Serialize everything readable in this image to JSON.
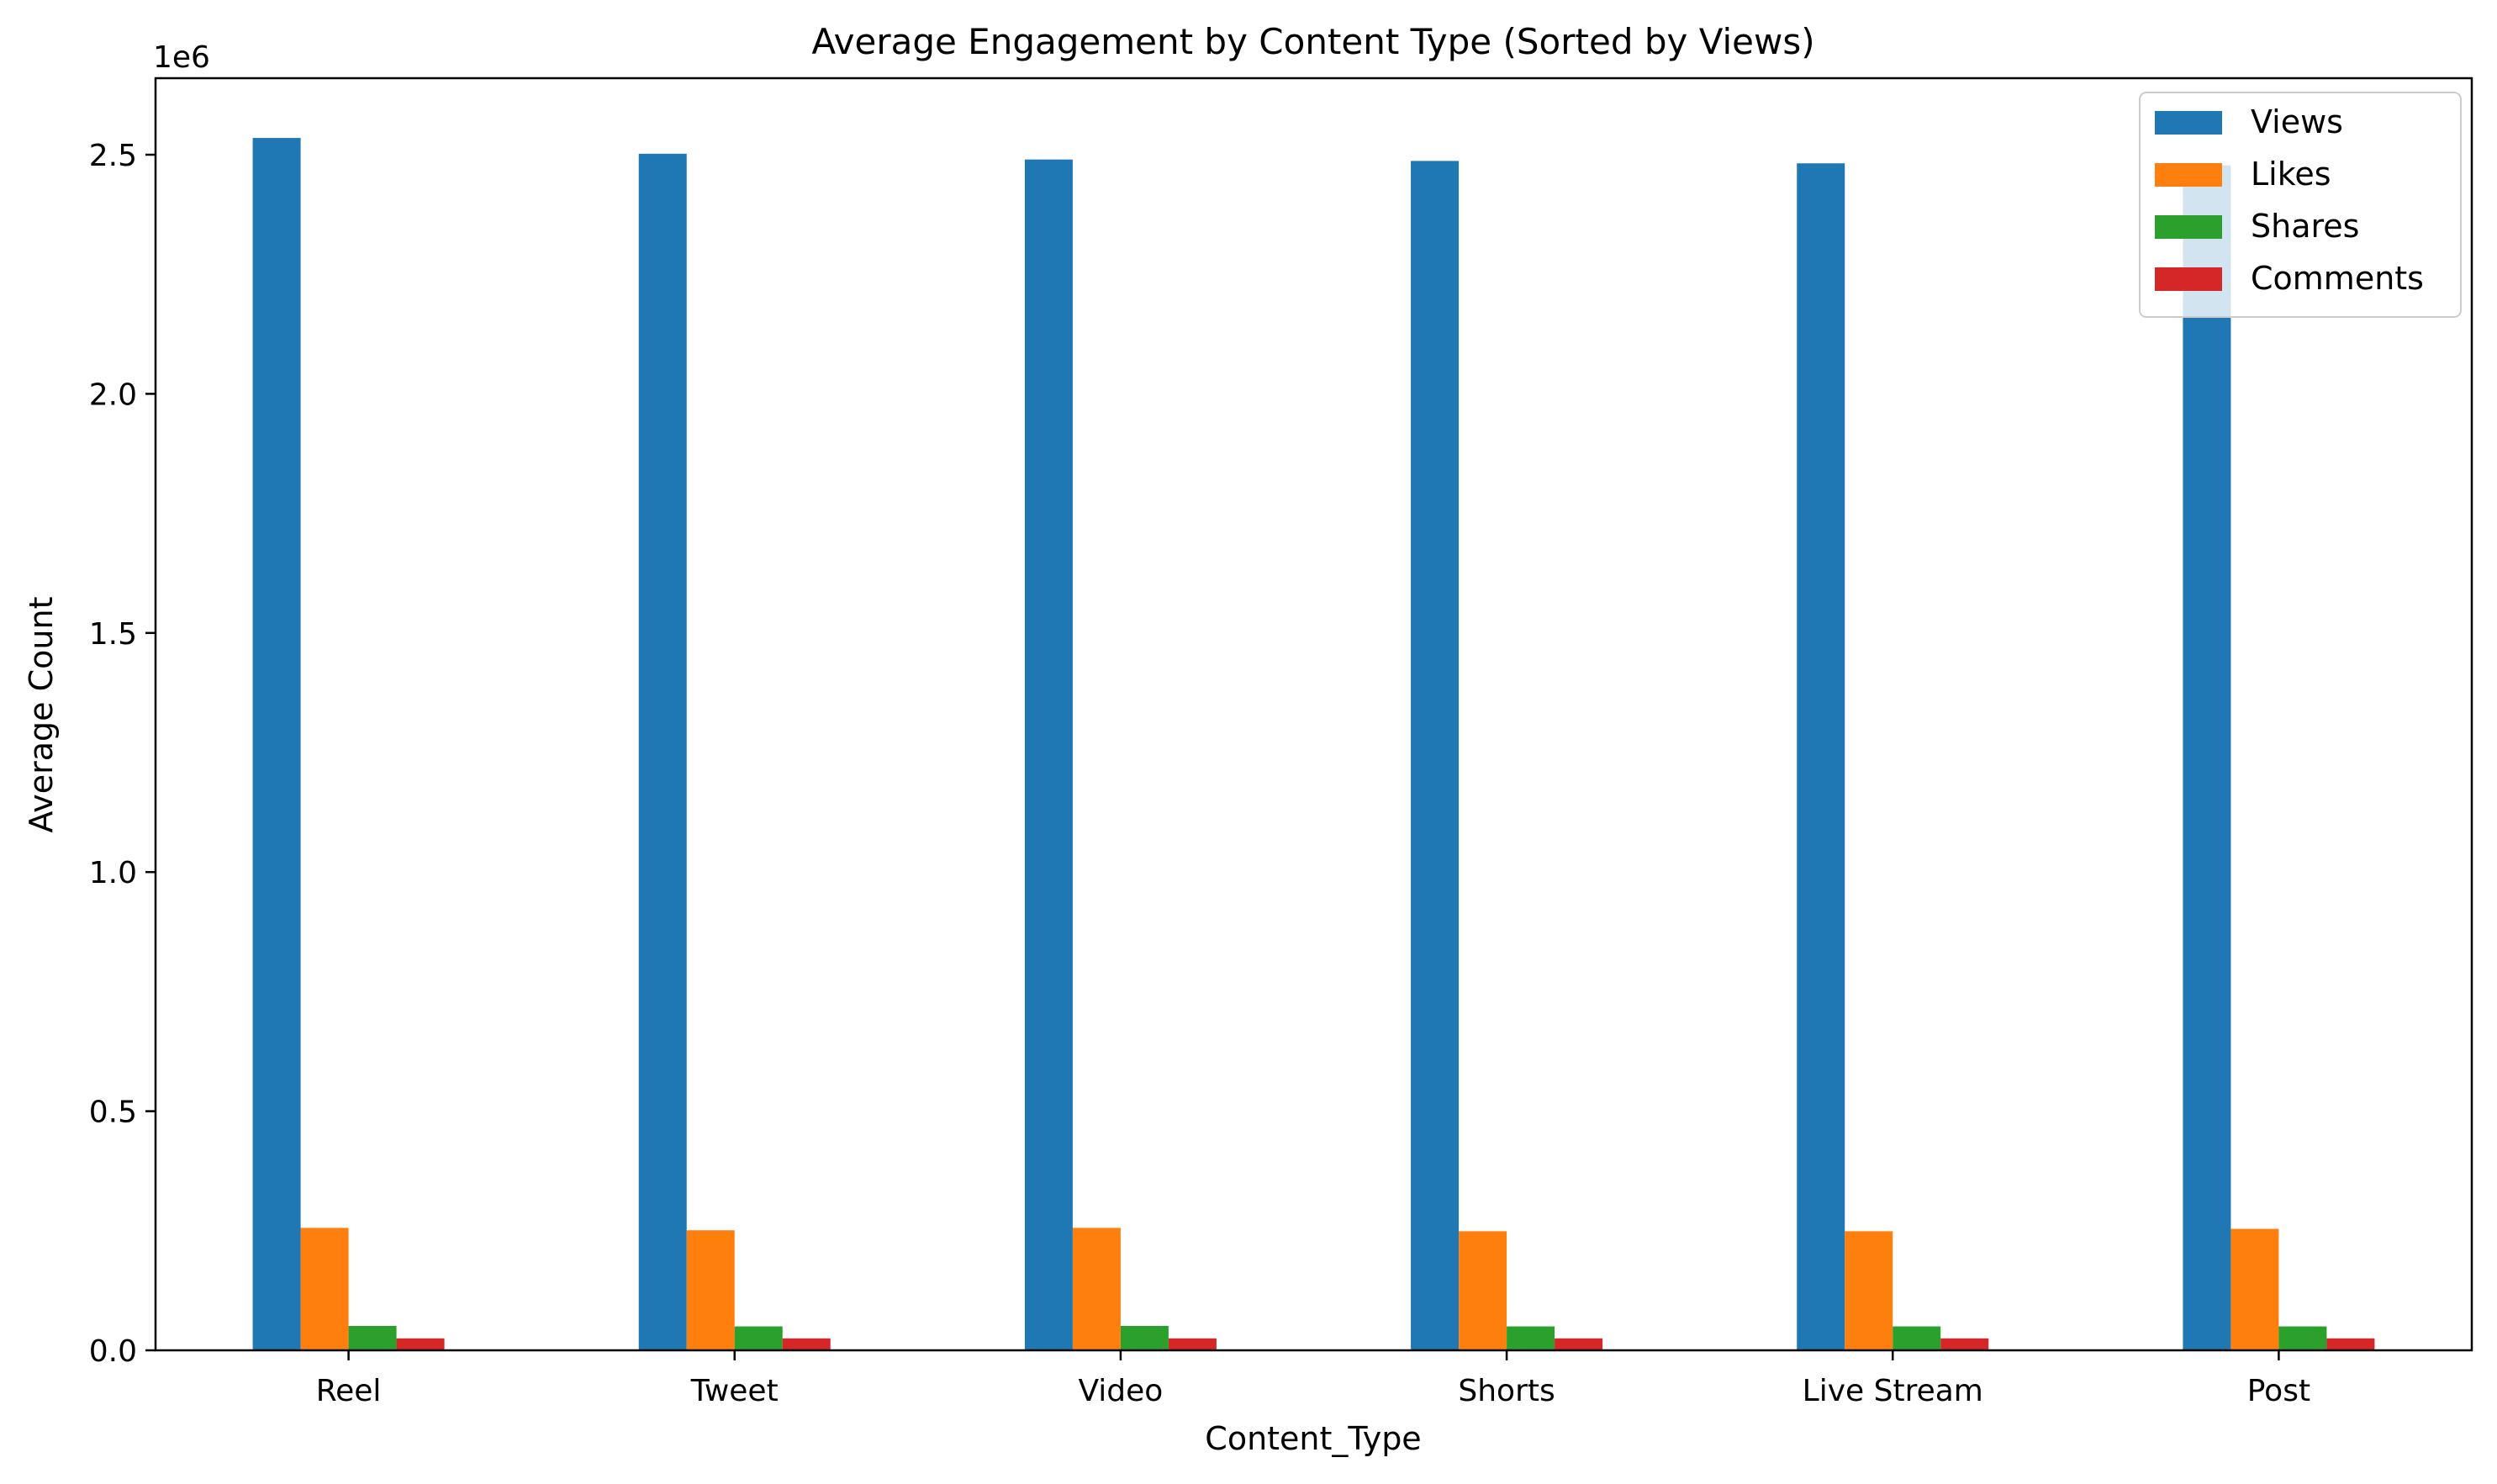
{
  "chart_data": {
    "type": "bar",
    "title": "Average Engagement by Content Type (Sorted by Views)",
    "xlabel": "Content_Type",
    "ylabel": "Average Count",
    "y_offset_label": "1e6",
    "categories": [
      "Reel",
      "Tweet",
      "Video",
      "Shorts",
      "Live Stream",
      "Post"
    ],
    "ylim": [
      0,
      2660000
    ],
    "yticks": [
      {
        "value": 0,
        "label": "0.0"
      },
      {
        "value": 500000,
        "label": "0.5"
      },
      {
        "value": 1000000,
        "label": "1.0"
      },
      {
        "value": 1500000,
        "label": "1.5"
      },
      {
        "value": 2000000,
        "label": "2.0"
      },
      {
        "value": 2500000,
        "label": "2.5"
      }
    ],
    "grid": false,
    "legend_position": "top-right",
    "series": [
      {
        "name": "Views",
        "color": "#1f77b4",
        "values": [
          2535000,
          2502000,
          2490000,
          2487000,
          2482000,
          2478000
        ]
      },
      {
        "name": "Likes",
        "color": "#ff7f0e",
        "values": [
          256000,
          251000,
          256000,
          249000,
          249000,
          254000
        ]
      },
      {
        "name": "Shares",
        "color": "#2ca02c",
        "values": [
          51000,
          50000,
          51000,
          50000,
          50000,
          50000
        ]
      },
      {
        "name": "Comments",
        "color": "#d62728",
        "values": [
          25000,
          25000,
          25000,
          25000,
          25000,
          25000
        ]
      }
    ]
  }
}
